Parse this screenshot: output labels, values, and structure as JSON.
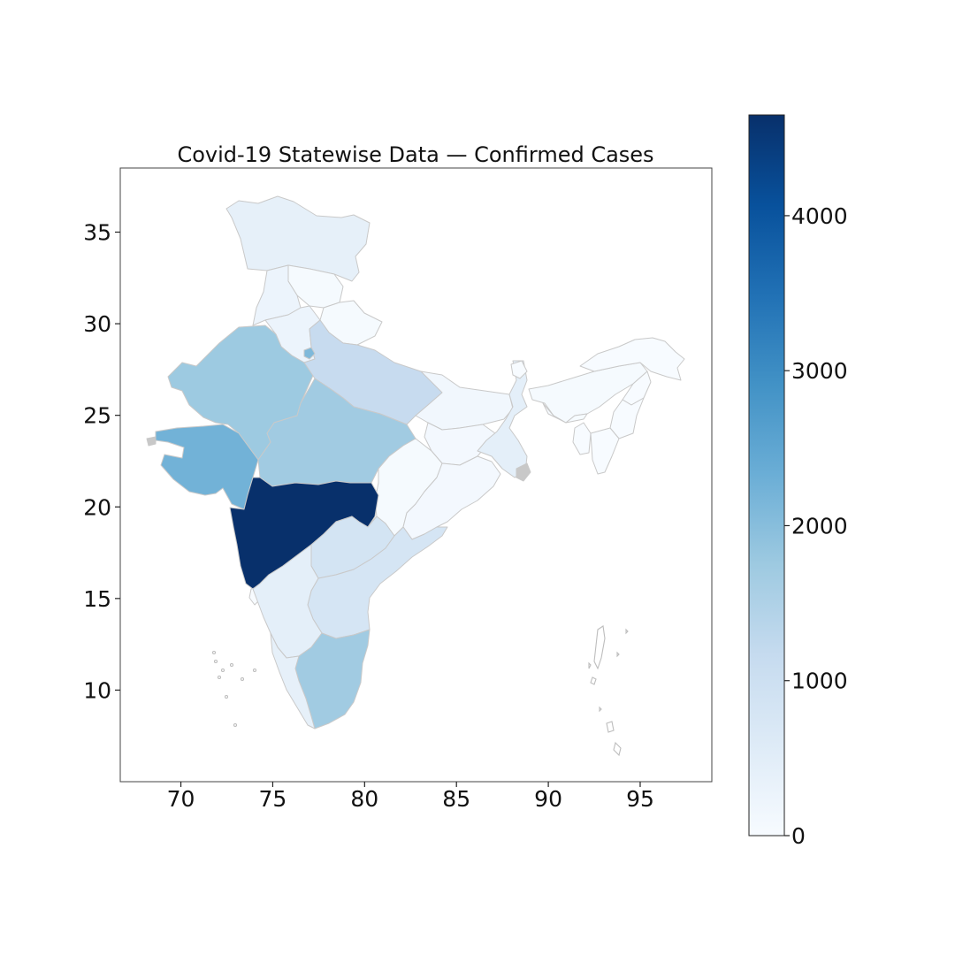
{
  "chart_data": {
    "type": "choropleth",
    "title": "Covid-19 Statewise Data — Confirmed Cases",
    "xlabel": "",
    "ylabel": "",
    "xlim": [
      66.7,
      98.9
    ],
    "ylim": [
      5.0,
      38.5
    ],
    "x_ticks": [
      "70",
      "75",
      "80",
      "85",
      "90",
      "95"
    ],
    "y_ticks": [
      "10",
      "15",
      "20",
      "25",
      "30",
      "35"
    ],
    "colormap": "Blues",
    "colorbar": {
      "min": 0,
      "max": 4650,
      "ticks": [
        "0",
        "1000",
        "2000",
        "3000",
        "4000"
      ],
      "stops": [
        "#f7fbff",
        "#deebf7",
        "#c6dbef",
        "#9ecae1",
        "#6baed6",
        "#4292c6",
        "#2171b5",
        "#08519c",
        "#08306b"
      ]
    },
    "regions": [
      {
        "name": "Maharashtra",
        "value": 4650
      },
      {
        "name": "Gujarat",
        "value": 2250
      },
      {
        "name": "Rajasthan",
        "value": 1750
      },
      {
        "name": "Madhya Pradesh",
        "value": 1700
      },
      {
        "name": "Tamil Nadu",
        "value": 1700
      },
      {
        "name": "Delhi",
        "value": 2100
      },
      {
        "name": "Uttar Pradesh",
        "value": 1150
      },
      {
        "name": "Telangana",
        "value": 850
      },
      {
        "name": "Andhra Pradesh",
        "value": 800
      },
      {
        "name": "West Bengal",
        "value": 450
      },
      {
        "name": "Karnataka",
        "value": 450
      },
      {
        "name": "Jammu and Kashmir",
        "value": 400
      },
      {
        "name": "Kerala",
        "value": 400
      },
      {
        "name": "Punjab",
        "value": 250
      },
      {
        "name": "Haryana",
        "value": 250
      },
      {
        "name": "Bihar",
        "value": 150
      },
      {
        "name": "Odisha",
        "value": 100
      },
      {
        "name": "Himachal Pradesh",
        "value": 40
      },
      {
        "name": "Uttarakhand",
        "value": 50
      },
      {
        "name": "Jharkhand",
        "value": 100
      },
      {
        "name": "Chhattisgarh",
        "value": 40
      },
      {
        "name": "Assam",
        "value": 40
      },
      {
        "name": "Arunachal Pradesh",
        "value": 1
      },
      {
        "name": "Nagaland",
        "value": 0
      },
      {
        "name": "Manipur",
        "value": 2
      },
      {
        "name": "Mizoram",
        "value": 1
      },
      {
        "name": "Tripura",
        "value": 2
      },
      {
        "name": "Meghalaya",
        "value": 12
      },
      {
        "name": "Sikkim",
        "value": 0
      },
      {
        "name": "Goa",
        "value": 7
      }
    ]
  }
}
